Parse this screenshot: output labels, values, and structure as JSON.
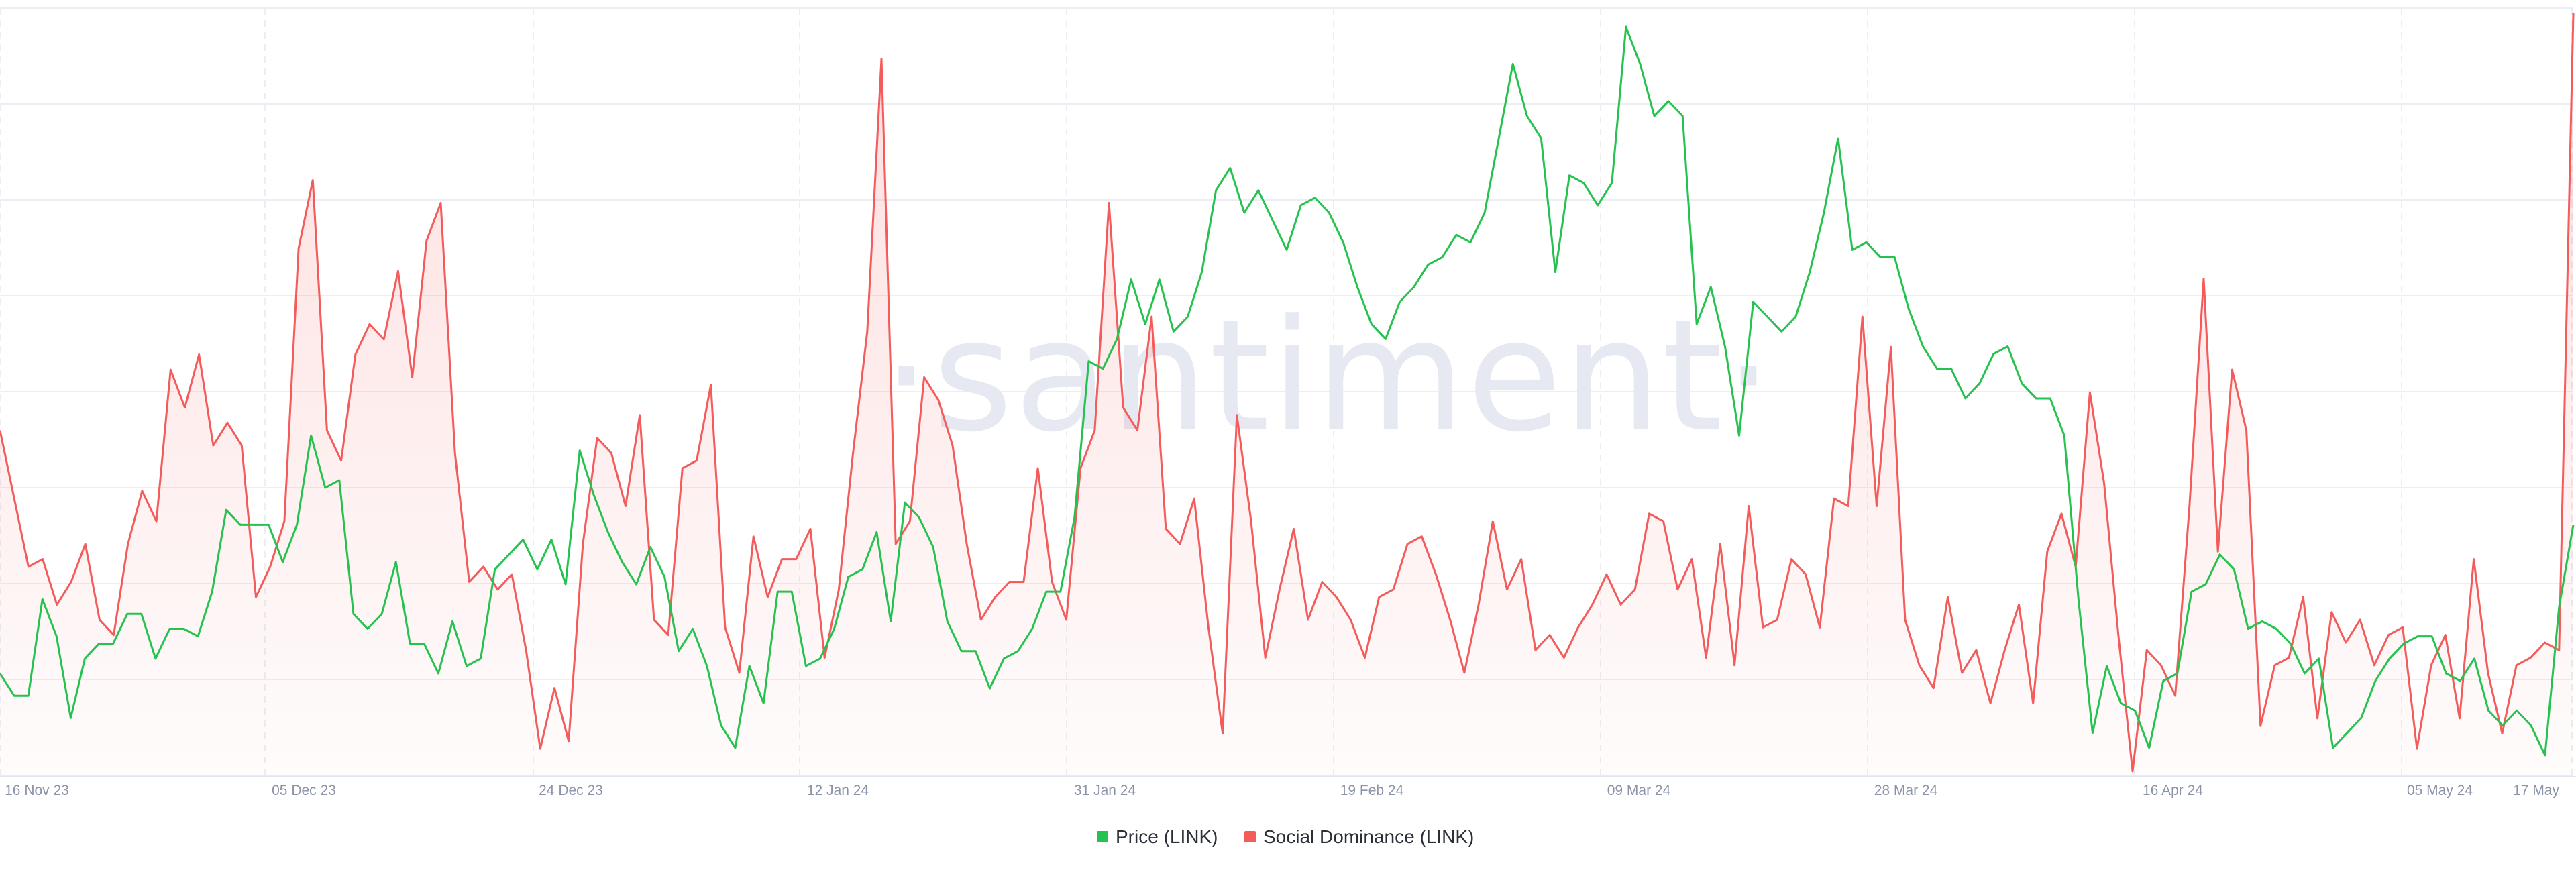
{
  "watermark": "·santiment·",
  "chart_data": {
    "type": "line",
    "x_tick_labels": [
      "16 Nov 23",
      "05 Dec 23",
      "24 Dec 23",
      "12 Jan 24",
      "31 Jan 24",
      "19 Feb 24",
      "09 Mar 24",
      "28 Mar 24",
      "16 Apr 24",
      "05 May 24",
      "17 May"
    ],
    "x_range": [
      "2023-11-16",
      "2024-05-17"
    ],
    "grid": true,
    "legend_position": "bottom-center",
    "series": [
      {
        "name": "Price (LINK)",
        "color": "#26c24f",
        "style": "line",
        "values": [
          0.13,
          0.1,
          0.1,
          0.23,
          0.18,
          0.07,
          0.15,
          0.17,
          0.17,
          0.21,
          0.21,
          0.15,
          0.19,
          0.19,
          0.18,
          0.24,
          0.35,
          0.33,
          0.33,
          0.33,
          0.28,
          0.33,
          0.45,
          0.38,
          0.39,
          0.21,
          0.19,
          0.21,
          0.28,
          0.17,
          0.17,
          0.13,
          0.2,
          0.14,
          0.15,
          0.27,
          0.29,
          0.31,
          0.27,
          0.31,
          0.25,
          0.43,
          0.37,
          0.32,
          0.28,
          0.25,
          0.3,
          0.26,
          0.16,
          0.19,
          0.14,
          0.06,
          0.03,
          0.14,
          0.09,
          0.24,
          0.24,
          0.14,
          0.15,
          0.19,
          0.26,
          0.27,
          0.32,
          0.2,
          0.36,
          0.34,
          0.3,
          0.2,
          0.16,
          0.16,
          0.11,
          0.15,
          0.16,
          0.19,
          0.24,
          0.24,
          0.34,
          0.55,
          0.54,
          0.58,
          0.66,
          0.6,
          0.66,
          0.59,
          0.61,
          0.67,
          0.78,
          0.81,
          0.75,
          0.78,
          0.74,
          0.7,
          0.76,
          0.77,
          0.75,
          0.71,
          0.65,
          0.6,
          0.58,
          0.63,
          0.65,
          0.68,
          0.69,
          0.72,
          0.71,
          0.75,
          0.85,
          0.95,
          0.88,
          0.85,
          0.67,
          0.8,
          0.79,
          0.76,
          0.79,
          1.0,
          0.95,
          0.88,
          0.9,
          0.88,
          0.6,
          0.65,
          0.57,
          0.45,
          0.63,
          0.61,
          0.59,
          0.61,
          0.67,
          0.75,
          0.85,
          0.7,
          0.71,
          0.69,
          0.69,
          0.62,
          0.57,
          0.54,
          0.54,
          0.5,
          0.52,
          0.56,
          0.57,
          0.52,
          0.5,
          0.5,
          0.45,
          0.23,
          0.05,
          0.14,
          0.09,
          0.08,
          0.03,
          0.12,
          0.13,
          0.24,
          0.25,
          0.29,
          0.27,
          0.19,
          0.2,
          0.19,
          0.17,
          0.13,
          0.15,
          0.03,
          0.05,
          0.07,
          0.12,
          0.15,
          0.17,
          0.18,
          0.18,
          0.13,
          0.12,
          0.15,
          0.08,
          0.06,
          0.08,
          0.06,
          0.02,
          0.22,
          0.33
        ]
      },
      {
        "name": "Social Dominance (LINK)",
        "color": "#f45b5b",
        "style": "area",
        "values": [
          0.45,
          0.36,
          0.27,
          0.28,
          0.22,
          0.25,
          0.3,
          0.2,
          0.18,
          0.3,
          0.37,
          0.33,
          0.53,
          0.48,
          0.55,
          0.43,
          0.46,
          0.43,
          0.23,
          0.27,
          0.33,
          0.69,
          0.78,
          0.45,
          0.41,
          0.55,
          0.59,
          0.57,
          0.66,
          0.52,
          0.7,
          0.75,
          0.42,
          0.25,
          0.27,
          0.24,
          0.26,
          0.16,
          0.03,
          0.11,
          0.04,
          0.3,
          0.44,
          0.42,
          0.35,
          0.47,
          0.2,
          0.18,
          0.4,
          0.41,
          0.51,
          0.19,
          0.13,
          0.31,
          0.23,
          0.28,
          0.28,
          0.32,
          0.15,
          0.24,
          0.42,
          0.58,
          0.94,
          0.3,
          0.33,
          0.52,
          0.49,
          0.43,
          0.3,
          0.2,
          0.23,
          0.25,
          0.25,
          0.4,
          0.25,
          0.2,
          0.4,
          0.45,
          0.75,
          0.48,
          0.45,
          0.6,
          0.32,
          0.3,
          0.36,
          0.19,
          0.05,
          0.47,
          0.33,
          0.15,
          0.24,
          0.32,
          0.2,
          0.25,
          0.23,
          0.2,
          0.15,
          0.23,
          0.24,
          0.3,
          0.31,
          0.26,
          0.2,
          0.13,
          0.22,
          0.33,
          0.24,
          0.28,
          0.16,
          0.18,
          0.15,
          0.19,
          0.22,
          0.26,
          0.22,
          0.24,
          0.34,
          0.33,
          0.24,
          0.28,
          0.15,
          0.3,
          0.14,
          0.35,
          0.19,
          0.2,
          0.28,
          0.26,
          0.19,
          0.36,
          0.35,
          0.6,
          0.35,
          0.56,
          0.2,
          0.14,
          0.11,
          0.23,
          0.13,
          0.16,
          0.09,
          0.16,
          0.22,
          0.09,
          0.29,
          0.34,
          0.27,
          0.5,
          0.38,
          0.18,
          0.0,
          0.16,
          0.14,
          0.1,
          0.35,
          0.65,
          0.29,
          0.53,
          0.45,
          0.06,
          0.14,
          0.15,
          0.23,
          0.07,
          0.21,
          0.17,
          0.2,
          0.14,
          0.18,
          0.19,
          0.03,
          0.14,
          0.18,
          0.07,
          0.28,
          0.13,
          0.05,
          0.14,
          0.15,
          0.17,
          0.16,
          1.0
        ]
      }
    ]
  },
  "legend": [
    {
      "label": "Price (LINK)",
      "color": "#26c24f"
    },
    {
      "label": "Social Dominance (LINK)",
      "color": "#f45b5b"
    }
  ]
}
